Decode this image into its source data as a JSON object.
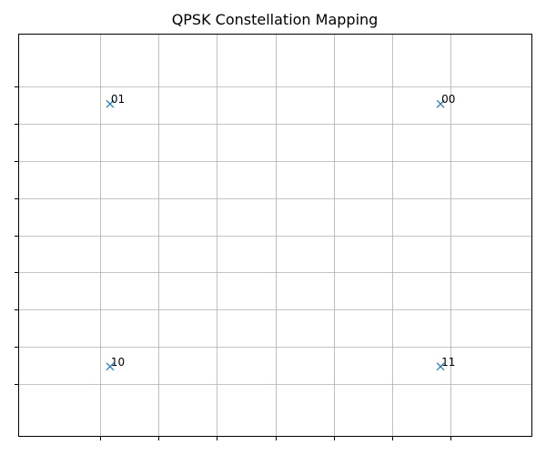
{
  "chart_data": {
    "type": "scatter",
    "title": "QPSK Constellation Mapping",
    "xlabel": "",
    "ylabel": "",
    "xlim": [
      -1.1,
      1.1
    ],
    "ylim": [
      -1.085,
      1.085
    ],
    "x_ticks": [
      -0.75,
      -0.5,
      -0.25,
      0.0,
      0.25,
      0.5,
      0.75
    ],
    "y_ticks": [
      -0.8,
      -0.6,
      -0.4,
      -0.2,
      0.0,
      0.2,
      0.4,
      0.6,
      0.8
    ],
    "x_tick_labels_visible": false,
    "y_tick_labels_visible": false,
    "grid": true,
    "marker": "x",
    "marker_color": "#1f77b4",
    "points": [
      {
        "label": "00",
        "x": 0.707,
        "y": 0.707
      },
      {
        "label": "01",
        "x": -0.707,
        "y": 0.707
      },
      {
        "label": "10",
        "x": -0.707,
        "y": -0.707
      },
      {
        "label": "11",
        "x": 0.707,
        "y": -0.707
      }
    ]
  }
}
